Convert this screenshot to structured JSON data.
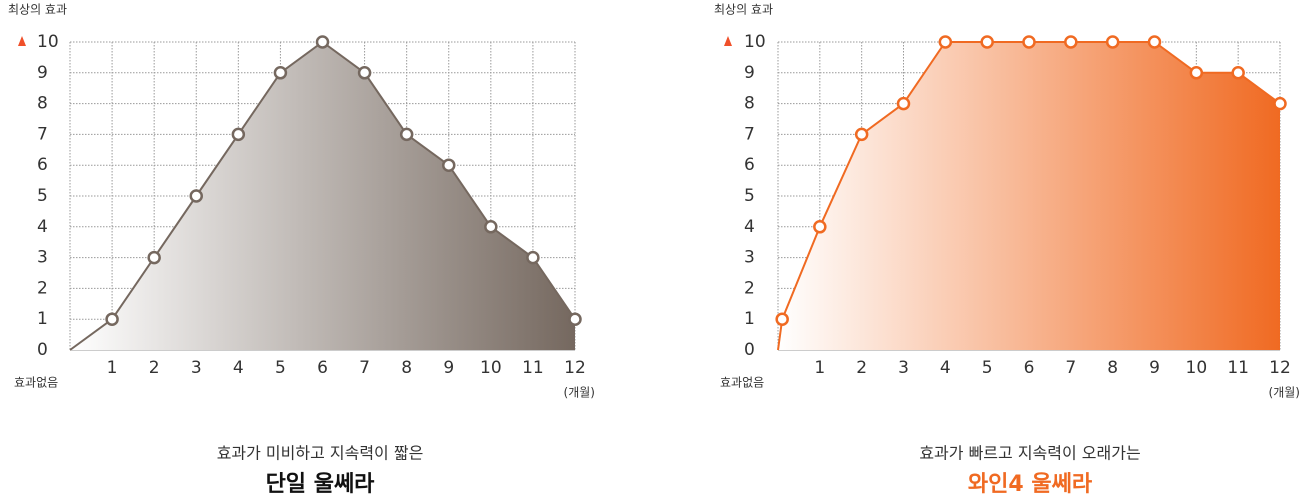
{
  "chart_data": [
    {
      "type": "area",
      "title": "단일 울쎄라",
      "subtitle": "효과가 미비하고 지속력이 짧은",
      "title_color": "#111111",
      "y_top_label": "최상의 효과",
      "y_bottom_label": "효과없음",
      "x_unit_label": "(개월)",
      "xlim": [
        0,
        12
      ],
      "ylim": [
        0,
        10
      ],
      "xticks": [
        1,
        2,
        3,
        4,
        5,
        6,
        7,
        8,
        9,
        10,
        11,
        12
      ],
      "yticks": [
        0,
        1,
        2,
        3,
        4,
        5,
        6,
        7,
        8,
        9,
        10
      ],
      "grid": true,
      "series": [
        {
          "x": [
            1,
            2,
            3,
            4,
            5,
            6,
            7,
            8,
            9,
            10,
            11,
            12
          ],
          "values": [
            1,
            3,
            5,
            7,
            9,
            10,
            9,
            7,
            6,
            4,
            3,
            1
          ],
          "color": "#75685f"
        }
      ]
    },
    {
      "type": "area",
      "title": "와인4 울쎄라",
      "subtitle": "효과가 빠르고 지속력이 오래가는",
      "title_color": "#f06a22",
      "y_top_label": "최상의 효과",
      "y_bottom_label": "효과없음",
      "x_unit_label": "(개월)",
      "xlim": [
        0,
        12
      ],
      "ylim": [
        0,
        10
      ],
      "xticks": [
        1,
        2,
        3,
        4,
        5,
        6,
        7,
        8,
        9,
        10,
        11,
        12
      ],
      "yticks": [
        0,
        1,
        2,
        3,
        4,
        5,
        6,
        7,
        8,
        9,
        10
      ],
      "grid": true,
      "series": [
        {
          "x": [
            0.1,
            1,
            2,
            3,
            4,
            5,
            6,
            7,
            8,
            9,
            10,
            11,
            12
          ],
          "values": [
            1,
            4,
            7,
            8,
            10,
            10,
            10,
            10,
            10,
            10,
            9,
            9,
            8
          ],
          "color": "#f06a22"
        }
      ]
    }
  ]
}
